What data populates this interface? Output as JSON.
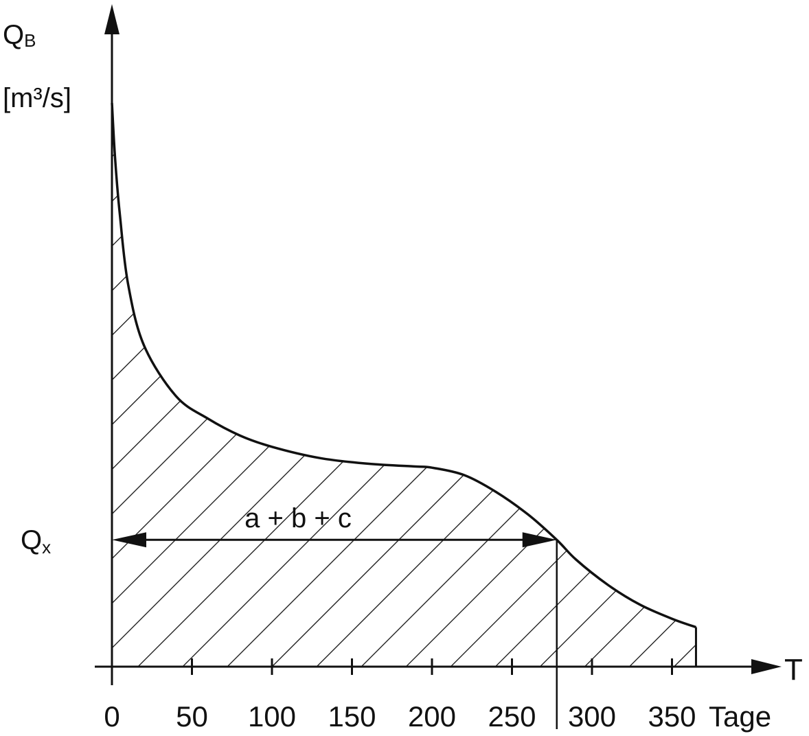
{
  "chart_data": {
    "type": "area",
    "y_axis": {
      "symbol": "Q",
      "subscript": "B",
      "unit": "[m³/s]"
    },
    "x_axis": {
      "symbol": "T",
      "unit": "Tage",
      "range": [
        0,
        365
      ]
    },
    "ticks": [
      0,
      50,
      100,
      150,
      200,
      250,
      300,
      350
    ],
    "tick_labels": [
      "0",
      "50",
      "100",
      "150",
      "200",
      "250",
      "300",
      "350"
    ],
    "series": [
      {
        "x": [
          0,
          2,
          5,
          10,
          20,
          40,
          60,
          80,
          100,
          130,
          160,
          190,
          200,
          220,
          240,
          260,
          278,
          290,
          310,
          330,
          350,
          365
        ],
        "y": [
          1.0,
          0.9,
          0.8,
          0.68,
          0.57,
          0.48,
          0.44,
          0.41,
          0.39,
          0.37,
          0.36,
          0.355,
          0.353,
          0.34,
          0.31,
          0.27,
          0.225,
          0.19,
          0.145,
          0.11,
          0.085,
          0.07
        ]
      }
    ],
    "shaded_area": true,
    "threshold": {
      "label": "Q",
      "subscript": "x",
      "y": 0.225,
      "x_end": 278,
      "span_label": "a + b + c"
    }
  }
}
